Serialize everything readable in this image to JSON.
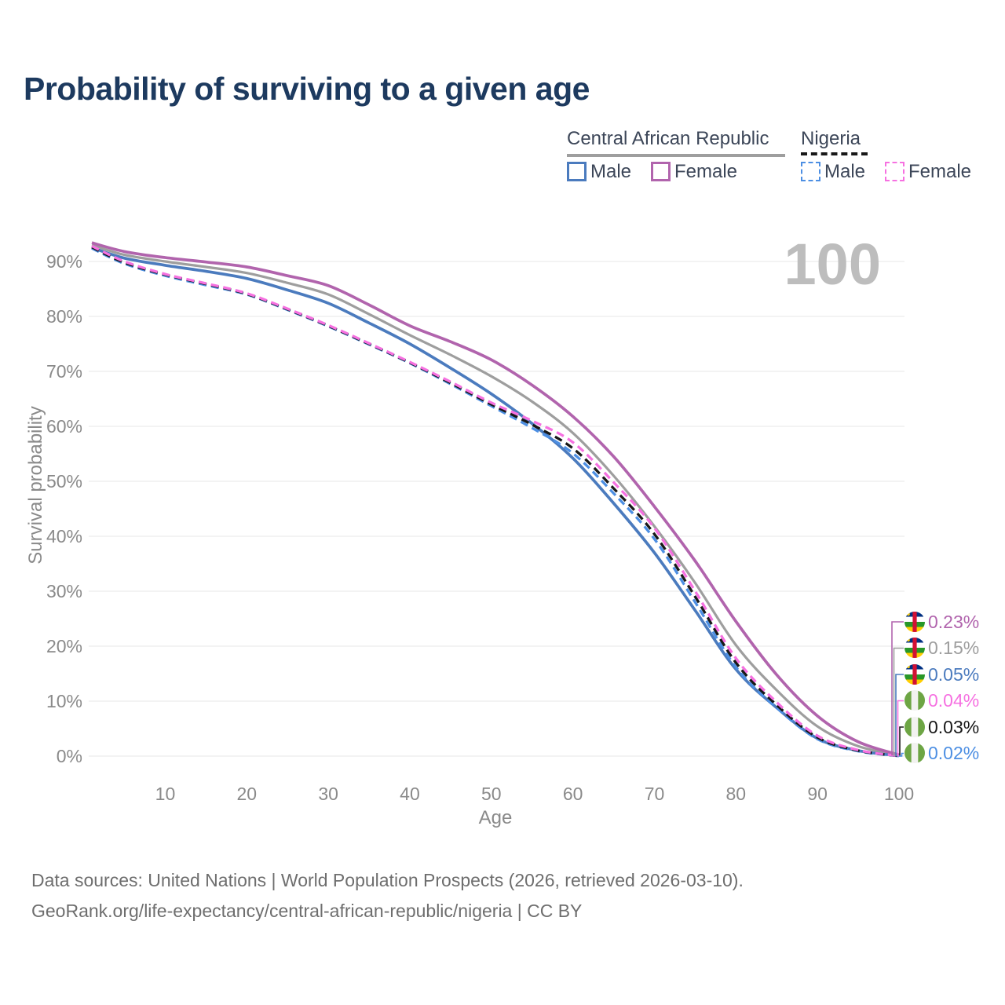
{
  "title": "Probability of surviving to a given age",
  "age_counter": "100",
  "legend": {
    "car": {
      "title": "Central African Republic",
      "male_label": "Male",
      "female_label": "Female"
    },
    "nigeria": {
      "title": "Nigeria",
      "male_label": "Male",
      "female_label": "Female"
    }
  },
  "colors": {
    "title_text": "#1d3a5f",
    "legend_text": "#3c4658",
    "axis_text": "#8a8a8a",
    "grid": "#e7e7e7",
    "watermark": "#bdbdbd",
    "footer_text": "#6e6e6e",
    "car_male": "#4b7bbe",
    "car_female": "#b164ad",
    "car_both": "#9e9e9e",
    "nigeria_male": "#4d8fe3",
    "nigeria_female": "#f671e1",
    "nigeria_both": "#181818"
  },
  "chart_data": {
    "type": "line",
    "title": "Probability of surviving to a given age",
    "xlabel": "Age",
    "ylabel": "Survival probability",
    "xlim": [
      1,
      100
    ],
    "ylim": [
      0,
      100
    ],
    "grid": true,
    "xticks": [
      10,
      20,
      30,
      40,
      50,
      60,
      70,
      80,
      90,
      100
    ],
    "yticks_percent": [
      0,
      10,
      20,
      30,
      40,
      50,
      60,
      70,
      80,
      90
    ],
    "x": [
      1,
      5,
      10,
      15,
      20,
      25,
      30,
      35,
      40,
      45,
      50,
      55,
      60,
      65,
      70,
      75,
      80,
      85,
      90,
      95,
      100
    ],
    "series": [
      {
        "name": "Central African Republic Female",
        "country": "Central African Republic",
        "sex": "Female",
        "style": "solid",
        "color_key": "car_female",
        "end_label": "0.23%",
        "flag": "car",
        "values": [
          93.4,
          91.8,
          90.7,
          89.9,
          89.0,
          87.4,
          85.6,
          82.1,
          78.3,
          75.4,
          72.1,
          67.5,
          61.8,
          54.5,
          45.4,
          35.5,
          24.5,
          14.8,
          7.3,
          2.6,
          0.23
        ]
      },
      {
        "name": "Central African Republic",
        "country": "Central African Republic",
        "sex": "Both",
        "style": "solid",
        "color_key": "car_both",
        "end_label": "0.15%",
        "flag": "car",
        "values": [
          93.0,
          91.2,
          90.0,
          89.0,
          87.9,
          86.1,
          84.0,
          80.4,
          76.6,
          73.0,
          69.1,
          64.5,
          58.8,
          51.0,
          41.8,
          31.5,
          20.2,
          12.0,
          5.4,
          1.8,
          0.15
        ]
      },
      {
        "name": "Central African Republic Male",
        "country": "Central African Republic",
        "sex": "Male",
        "style": "solid",
        "color_key": "car_male",
        "end_label": "0.05%",
        "flag": "car",
        "values": [
          92.5,
          90.6,
          89.3,
          88.2,
          86.9,
          84.8,
          82.4,
          78.8,
          75.0,
          70.6,
          65.9,
          60.5,
          54.2,
          46.0,
          37.0,
          26.5,
          15.8,
          8.8,
          3.2,
          1.0,
          0.05
        ]
      },
      {
        "name": "Nigeria Female",
        "country": "Nigeria",
        "sex": "Female",
        "style": "dashed",
        "color_key": "nigeria_female",
        "end_label": "0.04%",
        "flag": "nigeria",
        "values": [
          92.8,
          90.0,
          87.7,
          86.0,
          84.2,
          81.4,
          78.4,
          75.1,
          71.7,
          68.1,
          64.3,
          61.0,
          57.1,
          49.8,
          41.5,
          30.0,
          17.8,
          9.8,
          3.7,
          1.1,
          0.04
        ]
      },
      {
        "name": "Nigeria",
        "country": "Nigeria",
        "sex": "Both",
        "style": "dashed",
        "color_key": "nigeria_both",
        "end_label": "0.03%",
        "flag": "nigeria",
        "values": [
          92.6,
          89.8,
          87.6,
          85.9,
          84.1,
          81.3,
          78.3,
          75.0,
          71.6,
          67.9,
          64.0,
          60.3,
          56.0,
          48.7,
          40.4,
          29.0,
          17.0,
          9.3,
          3.4,
          1.0,
          0.03
        ]
      },
      {
        "name": "Nigeria Male",
        "country": "Nigeria",
        "sex": "Male",
        "style": "dashed",
        "color_key": "nigeria_male",
        "end_label": "0.02%",
        "flag": "nigeria",
        "values": [
          92.4,
          89.6,
          87.4,
          85.7,
          84.0,
          81.2,
          78.2,
          74.9,
          71.5,
          67.7,
          63.7,
          59.7,
          55.1,
          47.8,
          39.5,
          28.0,
          16.2,
          8.8,
          3.1,
          0.9,
          0.02
        ]
      }
    ],
    "end_labels_top_to_bottom": [
      "0.23%",
      "0.15%",
      "0.05%",
      "0.04%",
      "0.03%",
      "0.02%"
    ],
    "legend_position": "top-right"
  },
  "footer": {
    "line1": "Data sources: United Nations | World Population Prospects (2026, retrieved 2026-03-10).",
    "line2": "GeoRank.org/life-expectancy/central-african-republic/nigeria | CC BY"
  }
}
